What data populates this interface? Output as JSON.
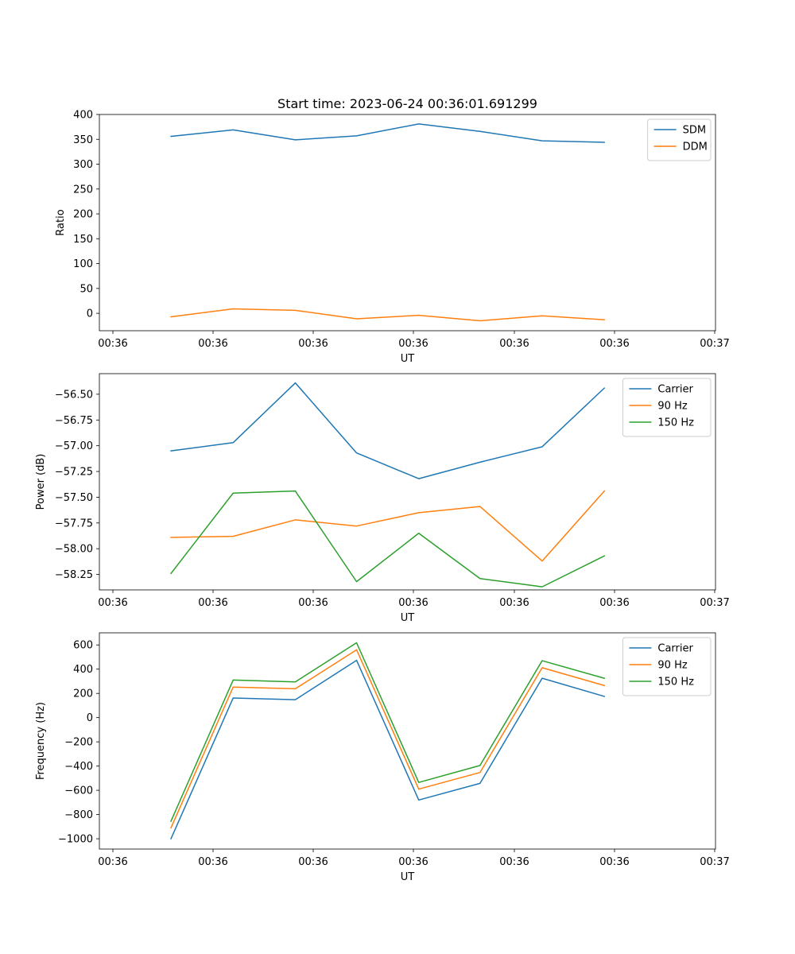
{
  "title": "Start time: 2023-06-24 00:36:01.691299",
  "chart_data": [
    {
      "type": "line",
      "xlabel": "UT",
      "ylabel": "Ratio",
      "xticks": [
        "00:36",
        "00:36",
        "00:36",
        "00:36",
        "00:36",
        "00:36",
        "00:37"
      ],
      "xtick_values": [
        0,
        1,
        2,
        3,
        4,
        5,
        6
      ],
      "ylim": [
        -35,
        400
      ],
      "yticks": [
        0,
        50,
        100,
        150,
        200,
        250,
        300,
        350,
        400
      ],
      "legend_position": "top-right",
      "x": [
        0.49,
        1.15,
        1.81,
        2.46,
        3.12,
        3.77,
        4.43,
        5.09
      ],
      "series": [
        {
          "name": "SDM",
          "color": "#1f77b4",
          "values": [
            356,
            369,
            349,
            357,
            381,
            366,
            347,
            344
          ]
        },
        {
          "name": "DDM",
          "color": "#ff7f0e",
          "values": [
            -7,
            9,
            6,
            -11,
            -4,
            -15,
            -5,
            -13
          ]
        }
      ]
    },
    {
      "type": "line",
      "xlabel": "UT",
      "ylabel": "Power (dB)",
      "xticks": [
        "00:36",
        "00:36",
        "00:36",
        "00:36",
        "00:36",
        "00:36",
        "00:37"
      ],
      "xtick_values": [
        0,
        1,
        2,
        3,
        4,
        5,
        6
      ],
      "ylim": [
        -58.4,
        -56.3
      ],
      "yticks": [
        -58.25,
        -58.0,
        -57.75,
        -57.5,
        -57.25,
        -57.0,
        -56.75,
        -56.5
      ],
      "ytick_labels": [
        "−58.25",
        "−58.00",
        "−57.75",
        "−57.50",
        "−57.25",
        "−57.00",
        "−56.75",
        "−56.50"
      ],
      "legend_position": "top-right",
      "x": [
        0.49,
        1.15,
        1.81,
        2.46,
        3.12,
        3.77,
        4.43,
        5.09
      ],
      "series": [
        {
          "name": "Carrier",
          "color": "#1f77b4",
          "values": [
            -57.05,
            -56.97,
            -56.39,
            -57.07,
            -57.32,
            -57.16,
            -57.01,
            -56.44
          ]
        },
        {
          "name": "90 Hz",
          "color": "#ff7f0e",
          "values": [
            -57.89,
            -57.88,
            -57.72,
            -57.78,
            -57.65,
            -57.59,
            -58.12,
            -57.44
          ]
        },
        {
          "name": "150 Hz",
          "color": "#2ca02c",
          "values": [
            -58.24,
            -57.46,
            -57.44,
            -58.32,
            -57.85,
            -58.29,
            -58.37,
            -58.07
          ]
        }
      ]
    },
    {
      "type": "line",
      "xlabel": "UT",
      "ylabel": "Frequency (Hz)",
      "xticks": [
        "00:36",
        "00:36",
        "00:36",
        "00:36",
        "00:36",
        "00:36",
        "00:37"
      ],
      "xtick_values": [
        0,
        1,
        2,
        3,
        4,
        5,
        6
      ],
      "ylim": [
        -1085,
        700
      ],
      "yticks": [
        -1000,
        -800,
        -600,
        -400,
        -200,
        0,
        200,
        400,
        600
      ],
      "ytick_labels": [
        "−1000",
        "−800",
        "−600",
        "−400",
        "−200",
        "0",
        "200",
        "400",
        "600"
      ],
      "legend_position": "top-right",
      "x": [
        0.49,
        1.15,
        1.81,
        2.46,
        3.12,
        3.77,
        4.43,
        5.09
      ],
      "series": [
        {
          "name": "Carrier",
          "color": "#1f77b4",
          "values": [
            -1000,
            162,
            148,
            473,
            -680,
            -543,
            325,
            175
          ]
        },
        {
          "name": "90 Hz",
          "color": "#ff7f0e",
          "values": [
            -910,
            252,
            238,
            560,
            -590,
            -453,
            412,
            265
          ]
        },
        {
          "name": "150 Hz",
          "color": "#2ca02c",
          "values": [
            -855,
            310,
            295,
            618,
            -535,
            -395,
            470,
            325
          ]
        }
      ]
    }
  ]
}
